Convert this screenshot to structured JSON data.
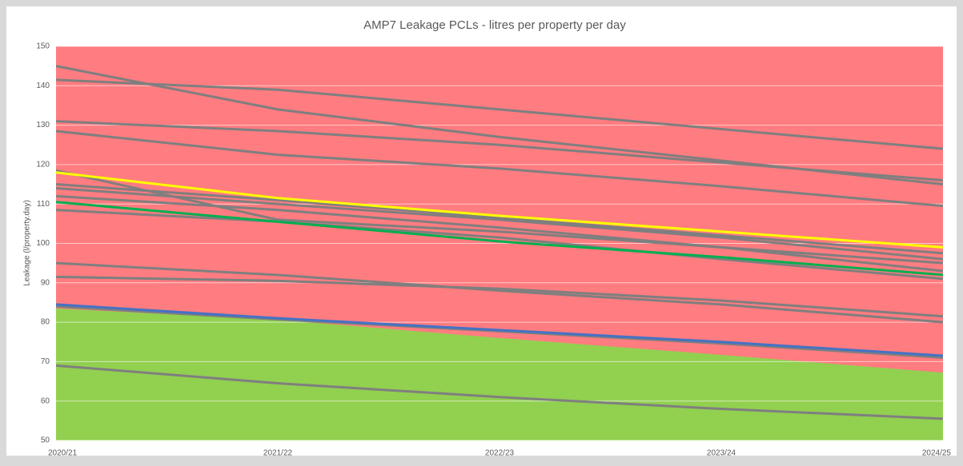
{
  "chart_data": {
    "type": "line",
    "title": "AMP7 Leakage PCLs - litres per property per day",
    "y_label": "Leakage (l/property.day)",
    "categories": [
      "2020/21",
      "2021/22",
      "2022/23",
      "2023/24",
      "2024/25"
    ],
    "ylim": [
      50,
      150
    ],
    "yticks": [
      50,
      60,
      70,
      80,
      90,
      100,
      110,
      120,
      130,
      140,
      150
    ],
    "grid": true,
    "series": [
      {
        "color": "#ff7c80",
        "area": true,
        "values": [
          150,
          150,
          150,
          150,
          150
        ]
      },
      {
        "color": "#92d050",
        "area": true,
        "values": [
          83.5,
          80.6,
          76,
          71.7,
          67.2
        ]
      },
      {
        "color": "#7f7f7f",
        "values": [
          145,
          134,
          127,
          121,
          115
        ]
      },
      {
        "color": "#7f7f7f",
        "values": [
          141.5,
          139,
          134,
          129,
          124
        ]
      },
      {
        "color": "#7f7f7f",
        "values": [
          131,
          128.5,
          125,
          120.5,
          116
        ]
      },
      {
        "color": "#7f7f7f",
        "values": [
          128.5,
          122.5,
          119,
          114.5,
          109.5
        ]
      },
      {
        "color": "#7f7f7f",
        "values": [
          118.5,
          106,
          103,
          99,
          95
        ]
      },
      {
        "color": "#7f7f7f",
        "values": [
          115,
          111,
          106.5,
          102,
          97.5
        ]
      },
      {
        "color": "#7f7f7f",
        "values": [
          114,
          110,
          106,
          101.5,
          96
        ]
      },
      {
        "color": "#7f7f7f",
        "values": [
          112,
          108.5,
          104,
          99,
          93
        ]
      },
      {
        "color": "#7f7f7f",
        "values": [
          108.5,
          105.5,
          101.5,
          96,
          91
        ]
      },
      {
        "color": "#7f7f7f",
        "values": [
          95,
          92,
          88,
          84.5,
          80
        ]
      },
      {
        "color": "#7f7f7f",
        "values": [
          91.5,
          90.5,
          88.5,
          85.5,
          81.5
        ]
      },
      {
        "color": "#7f7f7f",
        "values": [
          84,
          80.7,
          77.7,
          74.6,
          71
        ]
      },
      {
        "color": "#7f7f7f",
        "values": [
          69,
          64.5,
          61,
          58,
          55.5
        ]
      },
      {
        "color": "#ffff00",
        "values": [
          118,
          111.5,
          107,
          103,
          99
        ]
      },
      {
        "color": "#00b050",
        "values": [
          110.5,
          105.5,
          100.5,
          96.5,
          92
        ]
      },
      {
        "color": "#4472c4",
        "values": [
          84.5,
          81,
          78,
          75,
          71.5
        ]
      }
    ]
  }
}
